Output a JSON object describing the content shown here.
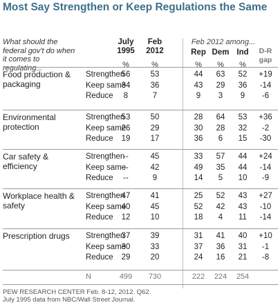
{
  "title": "Most Say Strengthen or Keep Regulations the Same",
  "question": "What should the federal gov't do when it comes to regulating...",
  "columns": {
    "july1995": "July 1995",
    "feb2012": "Feb 2012",
    "feb2012_among": "Feb 2012 among...",
    "rep": "Rep",
    "dem": "Dem",
    "ind": "Ind",
    "dr_gap": "D-R gap",
    "pct": "%"
  },
  "chart_data": {
    "type": "table",
    "title": "Most Say Strengthen or Keep Regulations the Same",
    "columns": [
      "July 1995",
      "Feb 2012",
      "Rep",
      "Dem",
      "Ind",
      "D-R gap"
    ],
    "groups": [
      {
        "category": "Food production & packaging",
        "rows": [
          {
            "label": "Strengthen",
            "values": [
              "56",
              "53",
              "44",
              "63",
              "52",
              "+19"
            ]
          },
          {
            "label": "Keep same",
            "values": [
              "34",
              "36",
              "43",
              "29",
              "36",
              "-14"
            ]
          },
          {
            "label": "Reduce",
            "values": [
              "8",
              "7",
              "9",
              "3",
              "9",
              "-6"
            ]
          }
        ]
      },
      {
        "category": "Environmental protection",
        "rows": [
          {
            "label": "Strengthen",
            "values": [
              "53",
              "50",
              "28",
              "64",
              "53",
              "+36"
            ]
          },
          {
            "label": "Keep same",
            "values": [
              "26",
              "29",
              "30",
              "28",
              "32",
              "-2"
            ]
          },
          {
            "label": "Reduce",
            "values": [
              "19",
              "17",
              "36",
              "6",
              "15",
              "-30"
            ]
          }
        ]
      },
      {
        "category": "Car safety & efficiency",
        "rows": [
          {
            "label": "Strengthen",
            "values": [
              "--",
              "45",
              "33",
              "57",
              "44",
              "+24"
            ]
          },
          {
            "label": "Keep same",
            "values": [
              "--",
              "42",
              "49",
              "35",
              "44",
              "-14"
            ]
          },
          {
            "label": "Reduce",
            "values": [
              "--",
              "9",
              "14",
              "5",
              "10",
              "-9"
            ]
          }
        ]
      },
      {
        "category": "Workplace health & safety",
        "rows": [
          {
            "label": "Strengthen",
            "values": [
              "47",
              "41",
              "25",
              "52",
              "43",
              "+27"
            ]
          },
          {
            "label": "Keep same",
            "values": [
              "40",
              "45",
              "52",
              "42",
              "43",
              "-10"
            ]
          },
          {
            "label": "Reduce",
            "values": [
              "12",
              "10",
              "18",
              "4",
              "11",
              "-14"
            ]
          }
        ]
      },
      {
        "category": "Prescription drugs",
        "rows": [
          {
            "label": "Strengthen",
            "values": [
              "37",
              "39",
              "31",
              "41",
              "40",
              "+10"
            ]
          },
          {
            "label": "Keep same",
            "values": [
              "30",
              "33",
              "37",
              "36",
              "31",
              "-1"
            ]
          },
          {
            "label": "Reduce",
            "values": [
              "29",
              "20",
              "24",
              "16",
              "21",
              "-8"
            ]
          }
        ]
      }
    ],
    "n_row": {
      "label": "N",
      "values": [
        "499",
        "730",
        "222",
        "224",
        "254",
        ""
      ]
    }
  },
  "footer": {
    "line1": "PEW RESEARCH CENTER Feb. 8-12, 2012. Q62.",
    "line2": "July 1995 data from NBC/Wall Street Journal."
  }
}
